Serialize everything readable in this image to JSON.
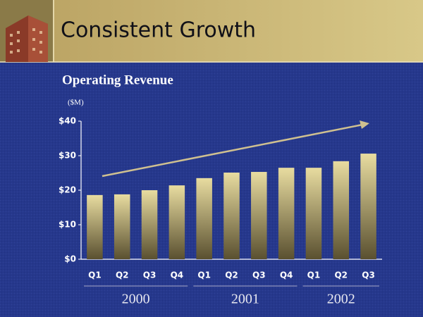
{
  "chart_data": {
    "type": "bar",
    "header": "Consistent Growth",
    "title": "Operating Revenue",
    "unit": "($M)",
    "groups": [
      {
        "name": "2000",
        "categories": [
          "Q1",
          "Q2",
          "Q3",
          "Q4"
        ],
        "values": [
          18.6,
          18.8,
          20.0,
          21.4
        ]
      },
      {
        "name": "2001",
        "categories": [
          "Q1",
          "Q2",
          "Q3",
          "Q4"
        ],
        "values": [
          23.5,
          25.1,
          25.3,
          26.5
        ]
      },
      {
        "name": "2002",
        "categories": [
          "Q1",
          "Q2",
          "Q3"
        ],
        "values": [
          26.5,
          28.4,
          30.6
        ]
      }
    ],
    "ylim": [
      0,
      40
    ],
    "yticks": [
      {
        "value": 0,
        "label": "$0"
      },
      {
        "value": 10,
        "label": "$10"
      },
      {
        "value": 20,
        "label": "$20"
      },
      {
        "value": 30,
        "label": "$30"
      },
      {
        "value": 40,
        "label": "$40"
      }
    ],
    "color_top": "#e8dca0",
    "color_bottom": "#5a5030"
  }
}
